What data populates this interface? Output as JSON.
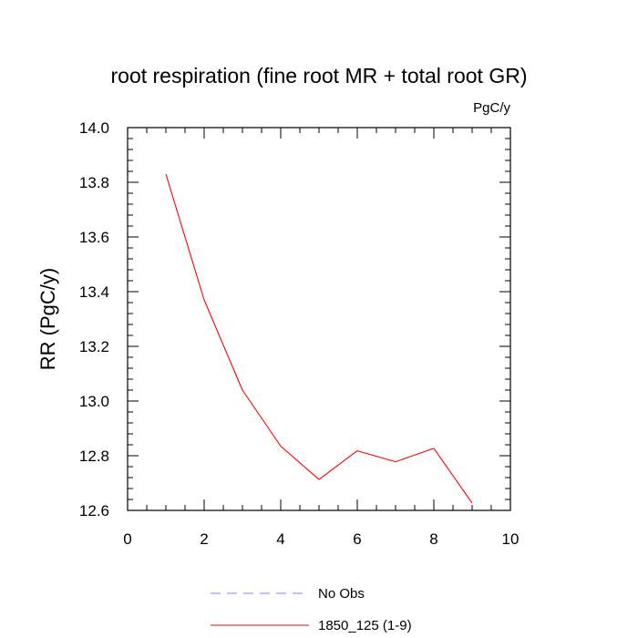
{
  "chart_data": {
    "type": "line",
    "title": "root respiration (fine root MR + total root GR)",
    "units_label": "PgC/y",
    "xlabel": "",
    "ylabel": "RR  (PgC/y)",
    "xlim": [
      0,
      10
    ],
    "ylim": [
      12.6,
      14.0
    ],
    "x_ticks": [
      0,
      2,
      4,
      6,
      8,
      10
    ],
    "x_tick_labels": [
      "0",
      "2",
      "4",
      "6",
      "8",
      "10"
    ],
    "y_ticks": [
      12.6,
      12.8,
      13.0,
      13.2,
      13.4,
      13.6,
      13.8,
      14.0
    ],
    "y_tick_labels": [
      "12.6",
      "12.8",
      "13.0",
      "13.2",
      "13.4",
      "13.6",
      "13.8",
      "14.0"
    ],
    "grid": false,
    "legend_position": "bottom",
    "series": [
      {
        "name": "1850_125 (1-9)",
        "color": "#ff0000",
        "style": "solid",
        "x": [
          1,
          2,
          3,
          4,
          5,
          6,
          7,
          8,
          9
        ],
        "y": [
          13.83,
          13.37,
          13.04,
          12.835,
          12.713,
          12.818,
          12.778,
          12.827,
          12.627
        ]
      }
    ],
    "legend": [
      {
        "label": "No Obs",
        "color": "#8080ff",
        "style": "dashed"
      },
      {
        "label": "1850_125 (1-9)",
        "color": "#ff0000",
        "style": "solid"
      }
    ]
  }
}
